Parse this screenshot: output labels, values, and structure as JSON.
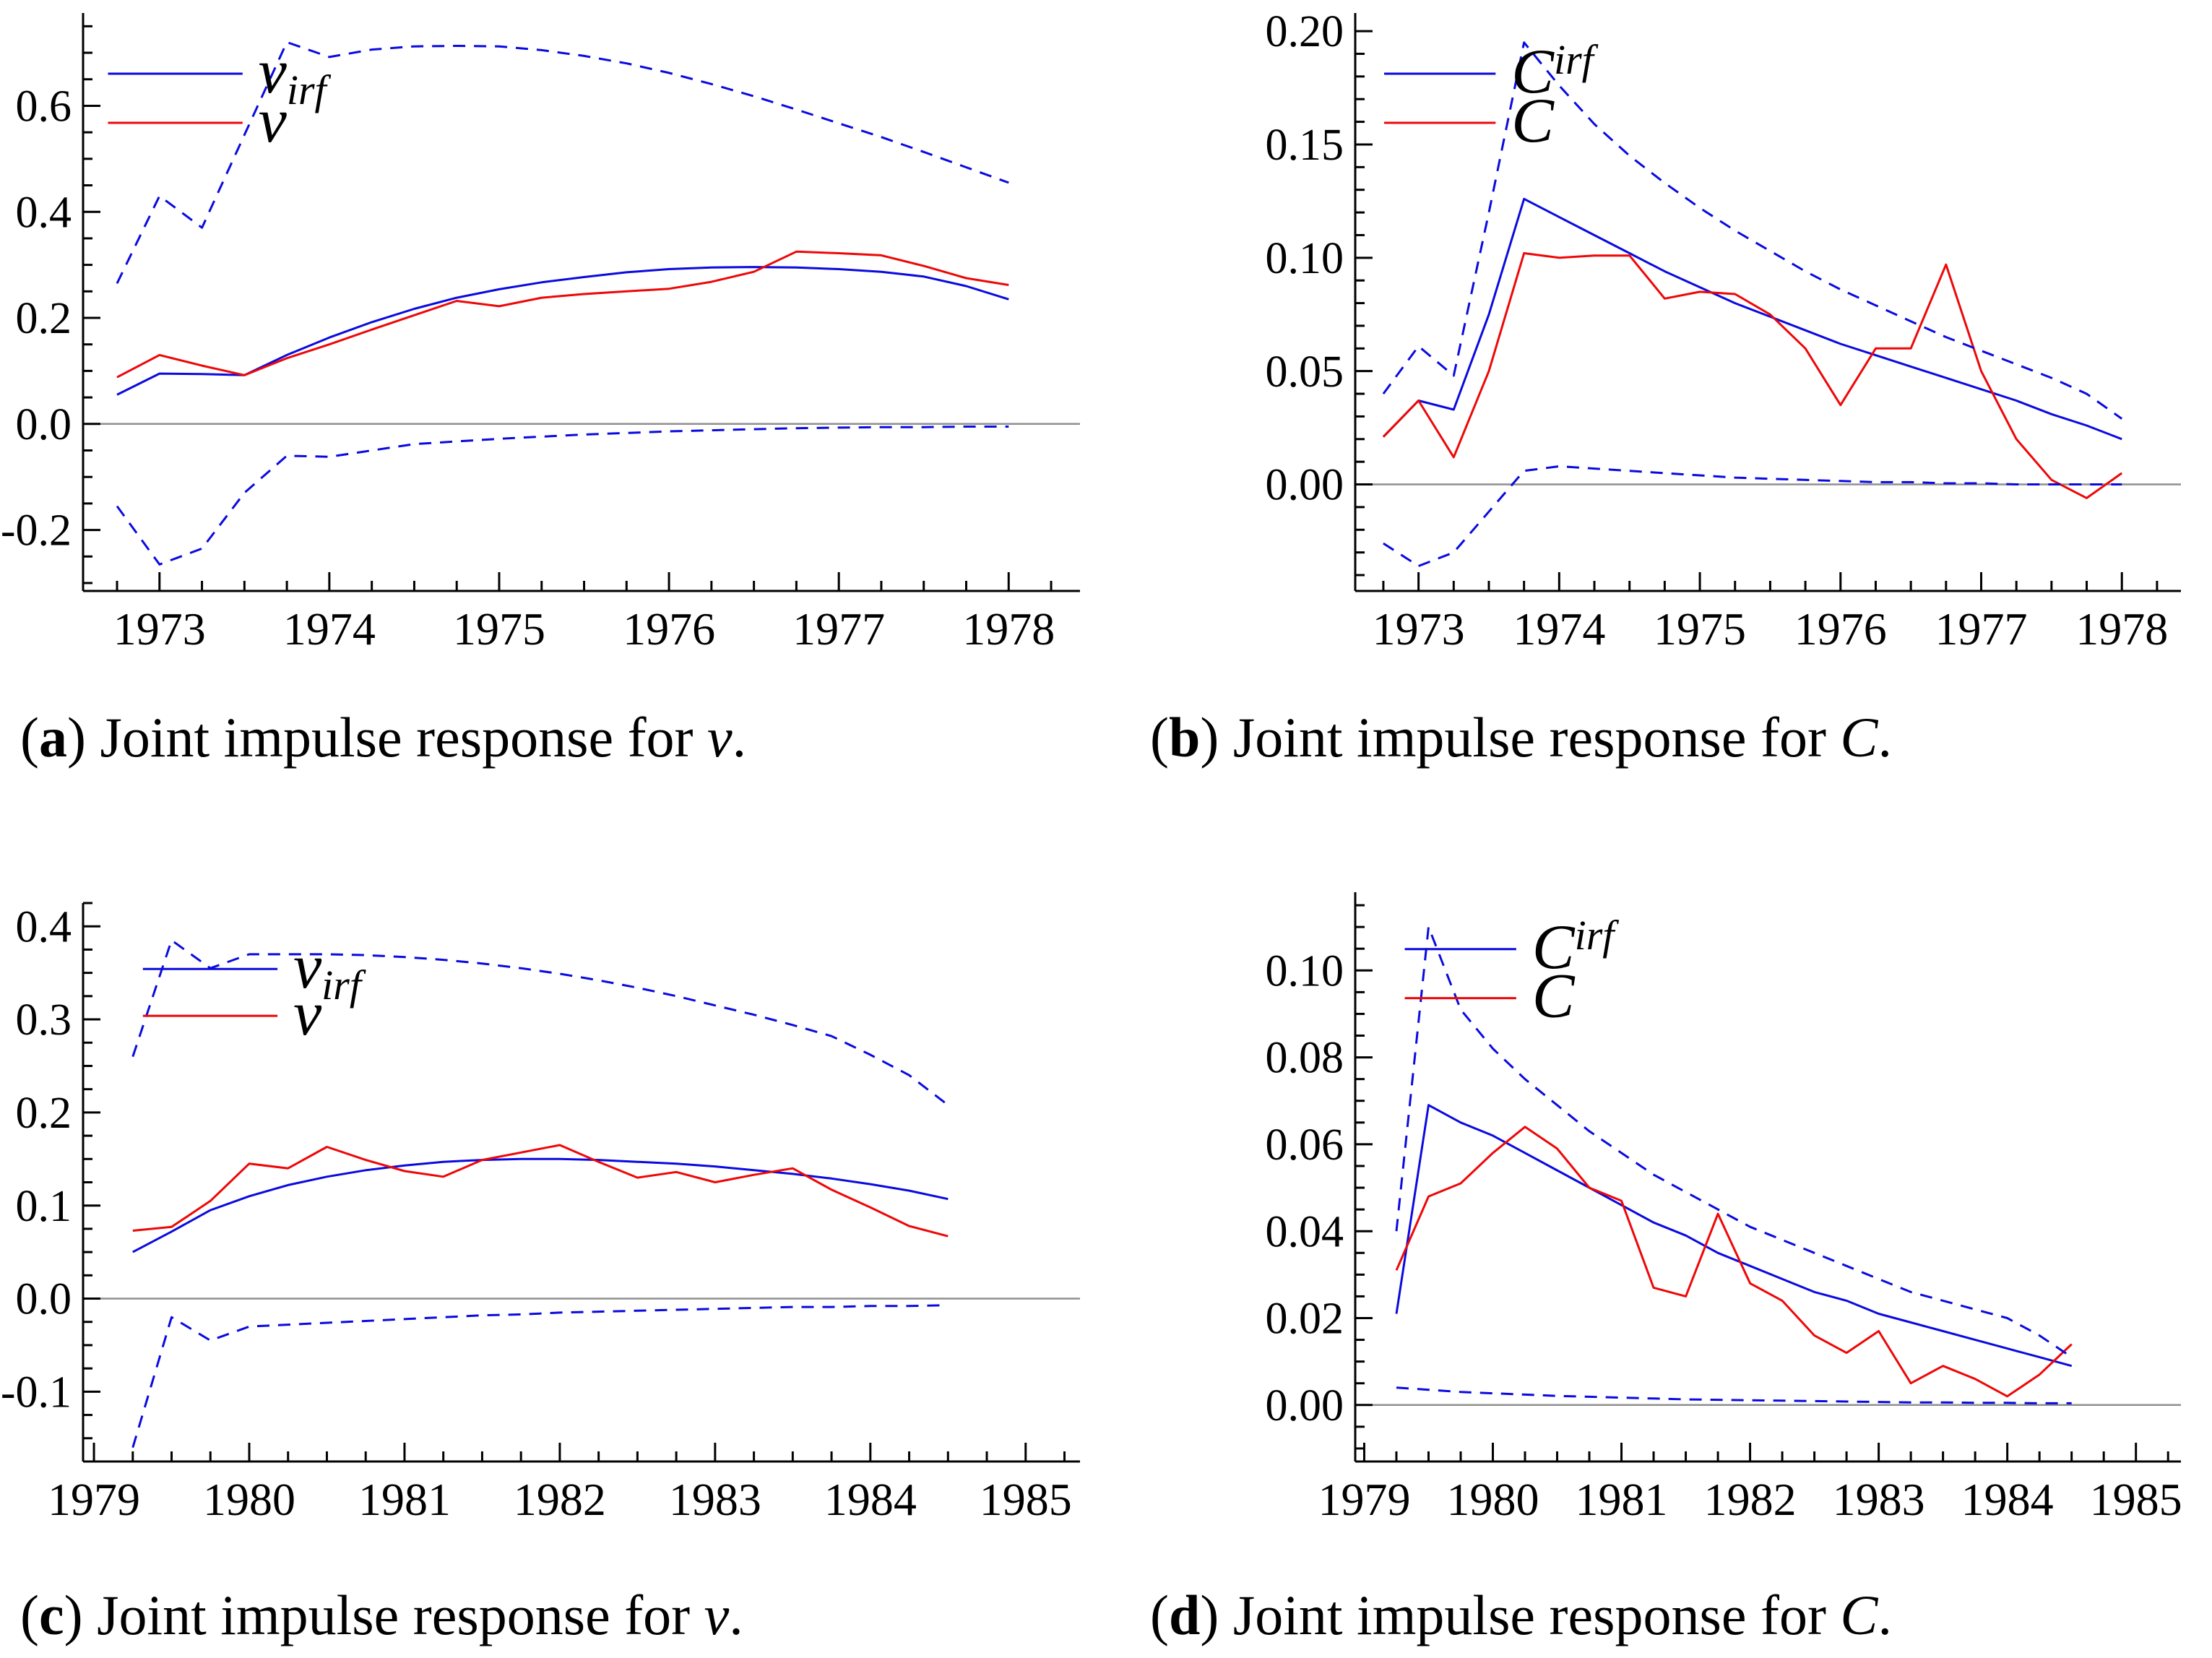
{
  "figure_title": "Joint impulse responses",
  "colors": {
    "line_blue": "#0a0ae0",
    "line_red": "#ee0707",
    "zero_line": "#8f8f8f",
    "axis": "#000000",
    "text": "#000000"
  },
  "chart_data": [
    {
      "type": "line",
      "panel": "a",
      "caption": {
        "open": "(",
        "letter": "a",
        "close": ")",
        "text": " Joint impulse response for ",
        "variable": "v",
        "period": "."
      },
      "xlim": [
        1972.55,
        1978.42
      ],
      "ylim": [
        -0.315,
        0.775
      ],
      "x_ticks": {
        "values": [
          1973,
          1974,
          1975,
          1976,
          1977,
          1978
        ],
        "labels": [
          "1973",
          "1974",
          "1975",
          "1976",
          "1977",
          "1978"
        ],
        "minor_step": 0.25
      },
      "y_ticks": {
        "values": [
          -0.2,
          0.0,
          0.2,
          0.4,
          0.6
        ],
        "labels": [
          "-0.2",
          "0.0",
          "0.2",
          "0.4",
          "0.6"
        ],
        "minor_step": 0.05
      },
      "zero_line": true,
      "legend": [
        {
          "main": "v",
          "script": "irf",
          "color": "blue"
        },
        {
          "main": "v",
          "script": "",
          "color": "red"
        }
      ],
      "x": [
        1972.75,
        1973.0,
        1973.25,
        1973.5,
        1973.75,
        1974.0,
        1974.25,
        1974.5,
        1974.75,
        1975.0,
        1975.25,
        1975.5,
        1975.75,
        1976.0,
        1976.25,
        1976.5,
        1976.75,
        1977.0,
        1977.25,
        1977.5,
        1977.75,
        1978.0
      ],
      "series": [
        {
          "name": "v_irf",
          "role": "irf",
          "color": "blue",
          "style": "solid",
          "values": [
            0.055,
            0.095,
            0.094,
            0.092,
            0.13,
            0.163,
            0.192,
            0.217,
            0.238,
            0.254,
            0.267,
            0.277,
            0.286,
            0.292,
            0.295,
            0.296,
            0.295,
            0.292,
            0.287,
            0.278,
            0.26,
            0.235
          ]
        },
        {
          "name": "v",
          "role": "actual",
          "color": "red",
          "style": "solid",
          "values": [
            0.088,
            0.13,
            0.11,
            0.092,
            0.124,
            0.15,
            0.178,
            0.205,
            0.232,
            0.222,
            0.238,
            0.245,
            0.25,
            0.255,
            0.268,
            0.287,
            0.325,
            0.322,
            0.318,
            0.298,
            0.275,
            0.262
          ]
        },
        {
          "name": "ci_upper",
          "role": "band",
          "color": "blue",
          "style": "dashed",
          "values": [
            0.265,
            0.43,
            0.37,
            0.545,
            0.72,
            0.692,
            0.706,
            0.712,
            0.713,
            0.712,
            0.705,
            0.694,
            0.68,
            0.662,
            0.641,
            0.618,
            0.593,
            0.567,
            0.541,
            0.513,
            0.484,
            0.455
          ]
        },
        {
          "name": "ci_lower",
          "role": "band",
          "color": "blue",
          "style": "dashed",
          "values": [
            -0.155,
            -0.265,
            -0.235,
            -0.13,
            -0.06,
            -0.062,
            -0.05,
            -0.038,
            -0.033,
            -0.028,
            -0.024,
            -0.02,
            -0.017,
            -0.014,
            -0.012,
            -0.01,
            -0.008,
            -0.007,
            -0.006,
            -0.006,
            -0.005,
            -0.005
          ]
        }
      ]
    },
    {
      "type": "line",
      "panel": "b",
      "caption": {
        "open": "(",
        "letter": "b",
        "close": ")",
        "text": " Joint impulse response for ",
        "variable": "C",
        "period": "."
      },
      "xlim": [
        1972.55,
        1978.42
      ],
      "ylim": [
        -0.047,
        0.208
      ],
      "x_ticks": {
        "values": [
          1973,
          1974,
          1975,
          1976,
          1977,
          1978
        ],
        "labels": [
          "1973",
          "1974",
          "1975",
          "1976",
          "1977",
          "1978"
        ],
        "minor_step": 0.25
      },
      "y_ticks": {
        "values": [
          0.0,
          0.05,
          0.1,
          0.15,
          0.2
        ],
        "labels": [
          "0.00",
          "0.05",
          "0.10",
          "0.15",
          "0.20"
        ],
        "minor_step": 0.01
      },
      "zero_line": true,
      "legend": [
        {
          "main": "C",
          "script": "irf",
          "color": "blue"
        },
        {
          "main": "C",
          "script": "",
          "color": "red"
        }
      ],
      "x": [
        1972.75,
        1973.0,
        1973.25,
        1973.5,
        1973.75,
        1974.0,
        1974.25,
        1974.5,
        1974.75,
        1975.0,
        1975.25,
        1975.5,
        1975.75,
        1976.0,
        1976.25,
        1976.5,
        1976.75,
        1977.0,
        1977.25,
        1977.5,
        1977.75,
        1978.0
      ],
      "series": [
        {
          "name": "C_irf",
          "role": "irf",
          "color": "blue",
          "style": "solid",
          "values": [
            0.021,
            0.037,
            0.033,
            0.075,
            0.126,
            0.118,
            0.11,
            0.102,
            0.094,
            0.087,
            0.08,
            0.074,
            0.068,
            0.062,
            0.057,
            0.052,
            0.047,
            0.042,
            0.037,
            0.031,
            0.026,
            0.02
          ]
        },
        {
          "name": "C",
          "role": "actual",
          "color": "red",
          "style": "solid",
          "values": [
            0.021,
            0.037,
            0.012,
            0.05,
            0.102,
            0.1,
            0.101,
            0.101,
            0.082,
            0.085,
            0.084,
            0.075,
            0.06,
            0.035,
            0.06,
            0.06,
            0.097,
            0.05,
            0.02,
            0.002,
            -0.006,
            0.005
          ]
        },
        {
          "name": "ci_upper",
          "role": "band",
          "color": "blue",
          "style": "dashed",
          "values": [
            0.04,
            0.061,
            0.048,
            0.12,
            0.195,
            0.176,
            0.159,
            0.145,
            0.133,
            0.122,
            0.112,
            0.103,
            0.094,
            0.086,
            0.079,
            0.072,
            0.065,
            0.059,
            0.053,
            0.047,
            0.04,
            0.029
          ]
        },
        {
          "name": "ci_lower",
          "role": "band",
          "color": "blue",
          "style": "dashed",
          "values": [
            -0.026,
            -0.036,
            -0.03,
            -0.012,
            0.006,
            0.008,
            0.007,
            0.006,
            0.005,
            0.004,
            0.003,
            0.0025,
            0.002,
            0.0015,
            0.001,
            0.001,
            0.0005,
            0.0005,
            0.0,
            0.0,
            0.0,
            0.0
          ]
        }
      ]
    },
    {
      "type": "line",
      "panel": "c",
      "caption": {
        "open": "(",
        "letter": "c",
        "close": ")",
        "text": " Joint impulse response for ",
        "variable": "v",
        "period": "."
      },
      "xlim": [
        1978.93,
        1985.35
      ],
      "ylim": [
        -0.175,
        0.425
      ],
      "x_ticks": {
        "values": [
          1979,
          1980,
          1981,
          1982,
          1983,
          1984,
          1985
        ],
        "labels": [
          "1979",
          "1980",
          "1981",
          "1982",
          "1983",
          "1984",
          "1985"
        ],
        "minor_step": 0.25
      },
      "y_ticks": {
        "values": [
          -0.1,
          0.0,
          0.1,
          0.2,
          0.3,
          0.4
        ],
        "labels": [
          "-0.1",
          "0.0",
          "0.1",
          "0.2",
          "0.3",
          "0.4"
        ],
        "minor_step": 0.025
      },
      "zero_line": true,
      "legend": [
        {
          "main": "v",
          "script": "irf",
          "color": "blue"
        },
        {
          "main": "v",
          "script": "",
          "color": "red"
        }
      ],
      "x": [
        1979.25,
        1979.5,
        1979.75,
        1980.0,
        1980.25,
        1980.5,
        1980.75,
        1981.0,
        1981.25,
        1981.5,
        1981.75,
        1982.0,
        1982.25,
        1982.5,
        1982.75,
        1983.0,
        1983.25,
        1983.5,
        1983.75,
        1984.0,
        1984.25,
        1984.5
      ],
      "series": [
        {
          "name": "v_irf",
          "role": "irf",
          "color": "blue",
          "style": "solid",
          "values": [
            0.05,
            0.072,
            0.095,
            0.11,
            0.122,
            0.131,
            0.138,
            0.143,
            0.147,
            0.149,
            0.15,
            0.15,
            0.149,
            0.147,
            0.145,
            0.142,
            0.138,
            0.134,
            0.129,
            0.123,
            0.116,
            0.107
          ]
        },
        {
          "name": "v",
          "role": "actual",
          "color": "red",
          "style": "solid",
          "values": [
            0.073,
            0.077,
            0.105,
            0.145,
            0.14,
            0.163,
            0.149,
            0.137,
            0.131,
            0.149,
            0.157,
            0.165,
            0.147,
            0.13,
            0.136,
            0.125,
            0.133,
            0.14,
            0.117,
            0.098,
            0.078,
            0.067
          ]
        },
        {
          "name": "ci_upper",
          "role": "band",
          "color": "blue",
          "style": "dashed",
          "values": [
            0.26,
            0.385,
            0.355,
            0.37,
            0.37,
            0.37,
            0.369,
            0.367,
            0.364,
            0.36,
            0.355,
            0.349,
            0.342,
            0.334,
            0.325,
            0.315,
            0.305,
            0.294,
            0.282,
            0.262,
            0.24,
            0.208
          ]
        },
        {
          "name": "ci_lower",
          "role": "band",
          "color": "blue",
          "style": "dashed",
          "values": [
            -0.16,
            -0.02,
            -0.045,
            -0.03,
            -0.028,
            -0.026,
            -0.024,
            -0.022,
            -0.02,
            -0.018,
            -0.017,
            -0.015,
            -0.014,
            -0.013,
            -0.012,
            -0.011,
            -0.01,
            -0.009,
            -0.009,
            -0.008,
            -0.008,
            -0.007
          ]
        }
      ]
    },
    {
      "type": "line",
      "panel": "d",
      "caption": {
        "open": "(",
        "letter": "d",
        "close": ")",
        "text": " Joint impulse response for ",
        "variable": "C",
        "period": "."
      },
      "xlim": [
        1978.93,
        1985.35
      ],
      "ylim": [
        -0.013,
        0.118
      ],
      "x_ticks": {
        "values": [
          1979,
          1980,
          1981,
          1982,
          1983,
          1984,
          1985
        ],
        "labels": [
          "1979",
          "1980",
          "1981",
          "1982",
          "1983",
          "1984",
          "1985"
        ],
        "minor_step": 0.25
      },
      "y_ticks": {
        "values": [
          0.0,
          0.02,
          0.04,
          0.06,
          0.08,
          0.1
        ],
        "labels": [
          "0.00",
          "0.02",
          "0.04",
          "0.06",
          "0.08",
          "0.10"
        ],
        "minor_step": 0.005
      },
      "zero_line": true,
      "legend": [
        {
          "main": "C",
          "script": "irf",
          "color": "blue"
        },
        {
          "main": "C",
          "script": "",
          "color": "red"
        }
      ],
      "x": [
        1979.25,
        1979.5,
        1979.75,
        1980.0,
        1980.25,
        1980.5,
        1980.75,
        1981.0,
        1981.25,
        1981.5,
        1981.75,
        1982.0,
        1982.25,
        1982.5,
        1982.75,
        1983.0,
        1983.25,
        1983.5,
        1983.75,
        1984.0,
        1984.25,
        1984.5
      ],
      "series": [
        {
          "name": "C_irf",
          "role": "irf",
          "color": "blue",
          "style": "solid",
          "values": [
            0.021,
            0.069,
            0.065,
            0.062,
            0.058,
            0.054,
            0.05,
            0.046,
            0.042,
            0.039,
            0.035,
            0.032,
            0.029,
            0.026,
            0.024,
            0.021,
            0.019,
            0.017,
            0.015,
            0.013,
            0.011,
            0.009
          ]
        },
        {
          "name": "C",
          "role": "actual",
          "color": "red",
          "style": "solid",
          "values": [
            0.031,
            0.048,
            0.051,
            0.058,
            0.064,
            0.059,
            0.05,
            0.047,
            0.027,
            0.025,
            0.044,
            0.028,
            0.024,
            0.016,
            0.012,
            0.017,
            0.005,
            0.009,
            0.006,
            0.002,
            0.007,
            0.014
          ]
        },
        {
          "name": "ci_upper",
          "role": "band",
          "color": "blue",
          "style": "dashed",
          "values": [
            0.04,
            0.11,
            0.091,
            0.082,
            0.075,
            0.069,
            0.063,
            0.058,
            0.053,
            0.049,
            0.045,
            0.041,
            0.038,
            0.035,
            0.032,
            0.029,
            0.026,
            0.024,
            0.022,
            0.02,
            0.016,
            0.011
          ]
        },
        {
          "name": "ci_lower",
          "role": "band",
          "color": "blue",
          "style": "dashed",
          "values": [
            0.004,
            0.0035,
            0.003,
            0.0027,
            0.0024,
            0.0021,
            0.0019,
            0.0017,
            0.0015,
            0.0013,
            0.0012,
            0.0011,
            0.001,
            0.0009,
            0.0008,
            0.0007,
            0.0006,
            0.0006,
            0.0005,
            0.0005,
            0.0004,
            0.0004
          ]
        }
      ]
    }
  ]
}
